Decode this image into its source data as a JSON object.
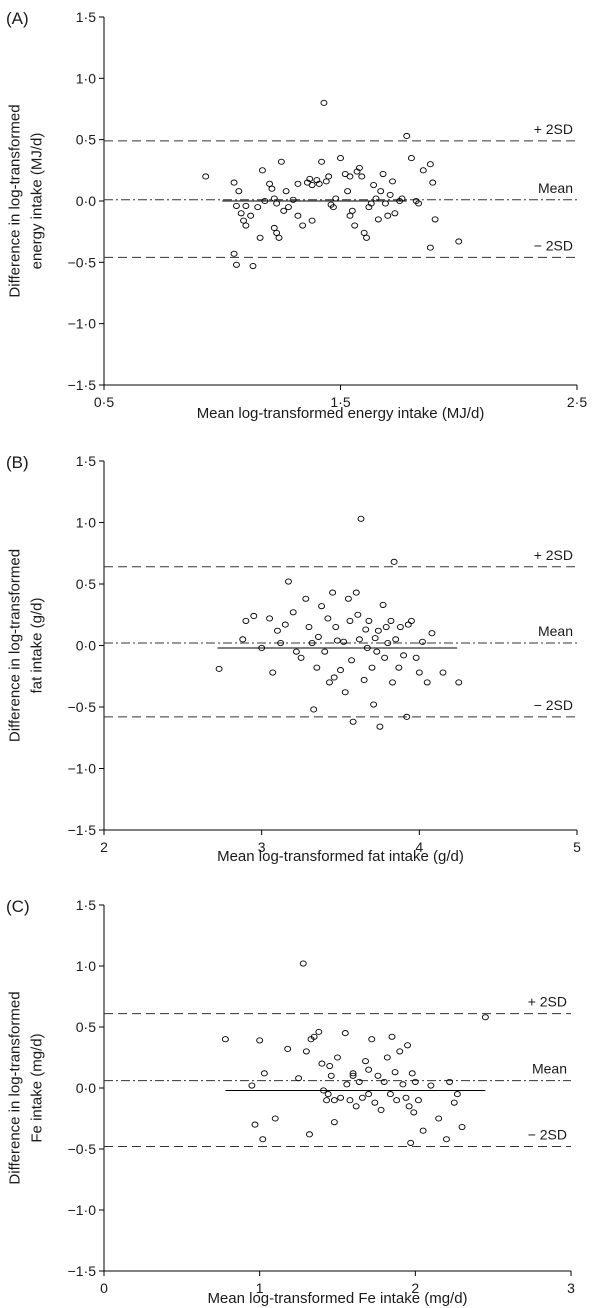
{
  "colors": {
    "axis": "#000000",
    "points": "#000000",
    "refline": "#333333",
    "background": "#ffffff"
  },
  "chart_data": [
    {
      "type": "scatter",
      "panel": "(A)",
      "xlabel": "Mean log-transformed energy intake (MJ/d)",
      "ylabel": [
        "Difference in log-transformed",
        "energy intake (MJ/d)"
      ],
      "xlim": [
        0.5,
        2.5
      ],
      "ylim": [
        -1.5,
        1.5
      ],
      "xticks": [
        0.5,
        1.5,
        2.5
      ],
      "xtick_labels": [
        "0·5",
        "1·5",
        "2·5"
      ],
      "yticks": [
        1.5,
        1.0,
        0.5,
        0.0,
        -0.5,
        -1.0,
        -1.5
      ],
      "ytick_labels": [
        "1·5",
        "1·0",
        "0·5",
        "0·0",
        "−0·5",
        "−1·0",
        "−1·5"
      ],
      "grid": false,
      "ref_lines": [
        {
          "label": "+ 2SD",
          "y": 0.49,
          "style": "dashed"
        },
        {
          "label": "Mean",
          "y": 0.01,
          "style": "dashdot"
        },
        {
          "label": "− 2SD",
          "y": -0.46,
          "style": "dashed"
        }
      ],
      "regression": {
        "x": [
          1.0,
          1.78
        ],
        "y": [
          0.0,
          0.0
        ]
      },
      "points": [
        [
          0.93,
          0.2
        ],
        [
          1.05,
          0.15
        ],
        [
          1.07,
          0.08
        ],
        [
          1.06,
          -0.04
        ],
        [
          1.08,
          -0.1
        ],
        [
          1.1,
          -0.04
        ],
        [
          1.09,
          -0.16
        ],
        [
          1.1,
          -0.2
        ],
        [
          1.12,
          -0.12
        ],
        [
          1.15,
          -0.05
        ],
        [
          1.16,
          -0.3
        ],
        [
          1.05,
          -0.43
        ],
        [
          1.06,
          -0.52
        ],
        [
          1.13,
          -0.53
        ],
        [
          1.17,
          0.25
        ],
        [
          1.2,
          0.14
        ],
        [
          1.21,
          0.1
        ],
        [
          1.22,
          0.02
        ],
        [
          1.23,
          -0.02
        ],
        [
          1.22,
          -0.22
        ],
        [
          1.23,
          -0.26
        ],
        [
          1.24,
          -0.3
        ],
        [
          1.25,
          0.32
        ],
        [
          1.27,
          0.08
        ],
        [
          1.28,
          -0.05
        ],
        [
          1.3,
          0.01
        ],
        [
          1.32,
          -0.12
        ],
        [
          1.34,
          -0.2
        ],
        [
          1.36,
          0.15
        ],
        [
          1.37,
          0.18
        ],
        [
          1.38,
          0.13
        ],
        [
          1.4,
          0.17
        ],
        [
          1.41,
          0.14
        ],
        [
          1.42,
          0.32
        ],
        [
          1.44,
          0.16
        ],
        [
          1.45,
          0.2
        ],
        [
          1.46,
          -0.03
        ],
        [
          1.47,
          -0.05
        ],
        [
          1.38,
          -0.16
        ],
        [
          1.43,
          0.8
        ],
        [
          1.48,
          0.02
        ],
        [
          1.5,
          0.35
        ],
        [
          1.52,
          0.22
        ],
        [
          1.53,
          0.08
        ],
        [
          1.54,
          -0.12
        ],
        [
          1.55,
          -0.08
        ],
        [
          1.56,
          -0.2
        ],
        [
          1.57,
          0.24
        ],
        [
          1.58,
          0.27
        ],
        [
          1.59,
          0.2
        ],
        [
          1.6,
          -0.26
        ],
        [
          1.61,
          -0.3
        ],
        [
          1.62,
          -0.05
        ],
        [
          1.63,
          -0.02
        ],
        [
          1.64,
          0.13
        ],
        [
          1.65,
          0.02
        ],
        [
          1.66,
          -0.15
        ],
        [
          1.68,
          0.22
        ],
        [
          1.69,
          -0.02
        ],
        [
          1.7,
          -0.12
        ],
        [
          1.71,
          0.05
        ],
        [
          1.72,
          0.16
        ],
        [
          1.73,
          -0.1
        ],
        [
          1.75,
          0.0
        ],
        [
          1.76,
          0.02
        ],
        [
          1.78,
          0.53
        ],
        [
          1.8,
          0.35
        ],
        [
          1.82,
          0.0
        ],
        [
          1.83,
          -0.02
        ],
        [
          1.85,
          0.25
        ],
        [
          1.88,
          0.3
        ],
        [
          1.89,
          0.15
        ],
        [
          1.9,
          -0.15
        ],
        [
          1.88,
          -0.38
        ],
        [
          2.0,
          -0.33
        ],
        [
          1.54,
          0.2
        ],
        [
          1.32,
          0.14
        ],
        [
          1.18,
          0.0
        ],
        [
          1.26,
          -0.08
        ],
        [
          1.67,
          0.08
        ]
      ]
    },
    {
      "type": "scatter",
      "panel": "(B)",
      "xlabel": "Mean log-transformed fat intake (g/d)",
      "ylabel": [
        "Difference in log-transformed",
        "fat intake (g/d)"
      ],
      "xlim": [
        2,
        5
      ],
      "ylim": [
        -1.5,
        1.5
      ],
      "xticks": [
        2,
        3,
        4,
        5
      ],
      "xtick_labels": [
        "2",
        "3",
        "4",
        "5"
      ],
      "yticks": [
        1.5,
        1.0,
        0.5,
        0.0,
        -0.5,
        -1.0,
        -1.5
      ],
      "ytick_labels": [
        "1·5",
        "1·0",
        "0·5",
        "0·0",
        "−0·5",
        "−1·0",
        "−1·5"
      ],
      "grid": false,
      "ref_lines": [
        {
          "label": "+ 2SD",
          "y": 0.64,
          "style": "dashed"
        },
        {
          "label": "Mean",
          "y": 0.02,
          "style": "dashdot"
        },
        {
          "label": "− 2SD",
          "y": -0.58,
          "style": "dashed"
        }
      ],
      "regression": {
        "x": [
          2.72,
          4.24
        ],
        "y": [
          -0.02,
          -0.02
        ]
      },
      "points": [
        [
          2.73,
          -0.19
        ],
        [
          2.88,
          0.05
        ],
        [
          2.9,
          0.2
        ],
        [
          2.95,
          0.24
        ],
        [
          3.0,
          -0.02
        ],
        [
          3.05,
          0.22
        ],
        [
          3.07,
          -0.22
        ],
        [
          3.1,
          0.12
        ],
        [
          3.12,
          0.02
        ],
        [
          3.15,
          0.17
        ],
        [
          3.17,
          0.52
        ],
        [
          3.2,
          0.27
        ],
        [
          3.22,
          -0.05
        ],
        [
          3.25,
          -0.1
        ],
        [
          3.28,
          0.38
        ],
        [
          3.3,
          0.15
        ],
        [
          3.32,
          0.02
        ],
        [
          3.33,
          -0.52
        ],
        [
          3.35,
          -0.18
        ],
        [
          3.38,
          0.32
        ],
        [
          3.4,
          -0.05
        ],
        [
          3.42,
          0.22
        ],
        [
          3.43,
          -0.3
        ],
        [
          3.45,
          0.43
        ],
        [
          3.47,
          0.15
        ],
        [
          3.48,
          0.04
        ],
        [
          3.5,
          -0.2
        ],
        [
          3.52,
          0.03
        ],
        [
          3.53,
          -0.38
        ],
        [
          3.55,
          0.38
        ],
        [
          3.56,
          0.2
        ],
        [
          3.57,
          -0.12
        ],
        [
          3.58,
          -0.62
        ],
        [
          3.6,
          0.43
        ],
        [
          3.61,
          0.25
        ],
        [
          3.62,
          0.05
        ],
        [
          3.63,
          1.03
        ],
        [
          3.65,
          -0.28
        ],
        [
          3.66,
          0.13
        ],
        [
          3.67,
          -0.02
        ],
        [
          3.68,
          0.2
        ],
        [
          3.7,
          -0.18
        ],
        [
          3.71,
          -0.48
        ],
        [
          3.72,
          0.06
        ],
        [
          3.73,
          -0.05
        ],
        [
          3.74,
          0.12
        ],
        [
          3.75,
          -0.66
        ],
        [
          3.77,
          0.33
        ],
        [
          3.78,
          -0.1
        ],
        [
          3.79,
          0.15
        ],
        [
          3.8,
          0.02
        ],
        [
          3.82,
          0.2
        ],
        [
          3.83,
          -0.3
        ],
        [
          3.84,
          0.68
        ],
        [
          3.85,
          0.05
        ],
        [
          3.87,
          -0.18
        ],
        [
          3.88,
          0.15
        ],
        [
          3.9,
          -0.08
        ],
        [
          3.92,
          -0.58
        ],
        [
          3.93,
          0.17
        ],
        [
          3.95,
          0.2
        ],
        [
          3.98,
          -0.1
        ],
        [
          4.0,
          -0.22
        ],
        [
          4.02,
          0.03
        ],
        [
          4.05,
          -0.3
        ],
        [
          4.08,
          0.1
        ],
        [
          4.15,
          -0.22
        ],
        [
          4.25,
          -0.3
        ],
        [
          3.46,
          -0.26
        ],
        [
          3.36,
          0.07
        ]
      ]
    },
    {
      "type": "scatter",
      "panel": "(C)",
      "xlabel": "Mean log-transformed Fe intake (mg/d)",
      "ylabel": [
        "Difference in log-transformed",
        "Fe intake (mg/d)"
      ],
      "xlim": [
        0,
        3
      ],
      "ylim": [
        -1.5,
        1.5
      ],
      "xticks": [
        0,
        1,
        2,
        3
      ],
      "xtick_labels": [
        "0",
        "1",
        "2",
        "3"
      ],
      "yticks": [
        1.5,
        1.0,
        0.5,
        0.0,
        -0.5,
        -1.0,
        -1.5
      ],
      "ytick_labels": [
        "1·5",
        "1·0",
        "0·5",
        "0·0",
        "−0·5",
        "−1·0",
        "−1·5"
      ],
      "grid": false,
      "ref_lines": [
        {
          "label": "+ 2SD",
          "y": 0.61,
          "style": "dashed"
        },
        {
          "label": "Mean",
          "y": 0.06,
          "style": "dashdot"
        },
        {
          "label": "− 2SD",
          "y": -0.48,
          "style": "dashed"
        }
      ],
      "regression": {
        "x": [
          0.78,
          2.45
        ],
        "y": [
          -0.02,
          -0.02
        ]
      },
      "points": [
        [
          0.78,
          0.4
        ],
        [
          0.95,
          0.02
        ],
        [
          0.97,
          -0.3
        ],
        [
          1.0,
          0.39
        ],
        [
          1.02,
          -0.42
        ],
        [
          1.03,
          0.12
        ],
        [
          1.1,
          -0.25
        ],
        [
          1.18,
          0.32
        ],
        [
          1.25,
          0.08
        ],
        [
          1.28,
          1.02
        ],
        [
          1.3,
          0.3
        ],
        [
          1.32,
          -0.38
        ],
        [
          1.33,
          0.4
        ],
        [
          1.35,
          0.42
        ],
        [
          1.38,
          0.46
        ],
        [
          1.4,
          0.2
        ],
        [
          1.41,
          -0.02
        ],
        [
          1.43,
          -0.1
        ],
        [
          1.45,
          0.18
        ],
        [
          1.46,
          0.1
        ],
        [
          1.48,
          -0.28
        ],
        [
          1.5,
          0.25
        ],
        [
          1.52,
          -0.08
        ],
        [
          1.55,
          0.45
        ],
        [
          1.56,
          0.03
        ],
        [
          1.58,
          -0.1
        ],
        [
          1.6,
          0.12
        ],
        [
          1.62,
          -0.15
        ],
        [
          1.64,
          0.05
        ],
        [
          1.66,
          -0.08
        ],
        [
          1.68,
          0.22
        ],
        [
          1.7,
          -0.05
        ],
        [
          1.72,
          0.4
        ],
        [
          1.74,
          -0.12
        ],
        [
          1.76,
          0.1
        ],
        [
          1.78,
          -0.18
        ],
        [
          1.8,
          0.05
        ],
        [
          1.82,
          0.25
        ],
        [
          1.84,
          -0.05
        ],
        [
          1.85,
          0.42
        ],
        [
          1.87,
          0.13
        ],
        [
          1.88,
          -0.1
        ],
        [
          1.9,
          0.3
        ],
        [
          1.92,
          0.03
        ],
        [
          1.94,
          -0.08
        ],
        [
          1.95,
          0.35
        ],
        [
          1.96,
          -0.15
        ],
        [
          1.97,
          -0.45
        ],
        [
          1.98,
          0.12
        ],
        [
          2.0,
          0.05
        ],
        [
          2.02,
          -0.1
        ],
        [
          2.05,
          -0.35
        ],
        [
          2.1,
          0.02
        ],
        [
          2.15,
          -0.25
        ],
        [
          2.2,
          -0.42
        ],
        [
          2.22,
          0.05
        ],
        [
          2.25,
          -0.12
        ],
        [
          2.27,
          -0.05
        ],
        [
          2.3,
          -0.32
        ],
        [
          2.45,
          0.58
        ],
        [
          1.6,
          0.1
        ],
        [
          1.7,
          0.15
        ],
        [
          1.44,
          -0.05
        ],
        [
          1.48,
          -0.1
        ],
        [
          1.99,
          -0.2
        ]
      ]
    }
  ]
}
